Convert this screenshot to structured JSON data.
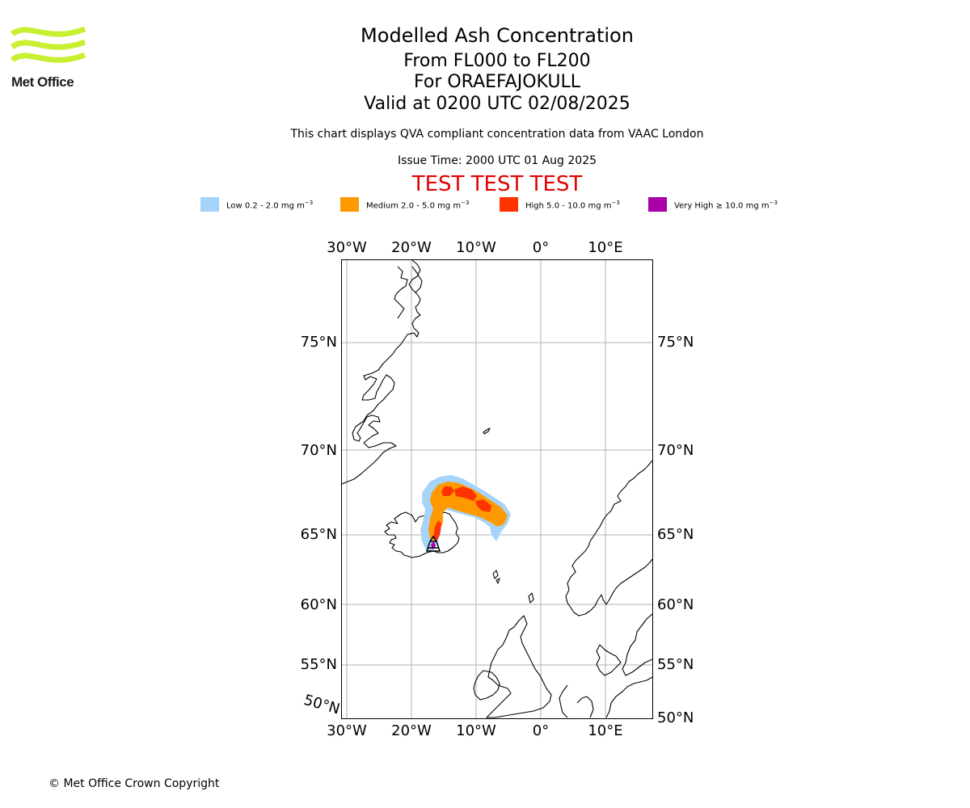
{
  "header": {
    "title": "Modelled Ash Concentration",
    "levels": "From FL000 to FL200",
    "volcano": "For ORAEFAJOKULL",
    "valid": "Valid at 0200 UTC 02/08/2025",
    "description": "This chart displays QVA compliant concentration data from VAAC London",
    "issue_time": "Issue Time: 2000 UTC 01 Aug 2025",
    "test_banner": "TEST TEST TEST"
  },
  "logo": {
    "name": "Met Office",
    "colors": {
      "waves": "#c8f032",
      "text": "#1d1d1b"
    }
  },
  "legend": [
    {
      "label": "Low 0.2 - 2.0 mg m",
      "unit_exp": "−3",
      "color": "#a6d3f9"
    },
    {
      "label": "Medium 2.0 - 5.0 mg m",
      "unit_exp": "−3",
      "color": "#ff9900"
    },
    {
      "label": "High 5.0 - 10.0 mg m",
      "unit_exp": "−3",
      "color": "#ff3300"
    },
    {
      "label": "Very High  ≥  10.0 mg m",
      "unit_exp": "−3",
      "color": "#aa00aa"
    }
  ],
  "map": {
    "lon_ticks": [
      "30°W",
      "20°W",
      "10°W",
      "0°",
      "10°E"
    ],
    "lat_ticks_left": [
      "75°N",
      "70°N",
      "65°N",
      "60°N",
      "55°N",
      "50°N"
    ],
    "lat_ticks_right": [
      "75°N",
      "70°N",
      "65°N",
      "60°N",
      "55°N",
      "50°N"
    ],
    "lon_range": [
      -31,
      17
    ],
    "lat_range": [
      49,
      79
    ],
    "gridlines": true,
    "colors": {
      "grid": "#b0b0b0",
      "coast": "#000000",
      "frame": "#000000"
    }
  },
  "footer": {
    "copyright": "© Met Office Crown Copyright"
  }
}
